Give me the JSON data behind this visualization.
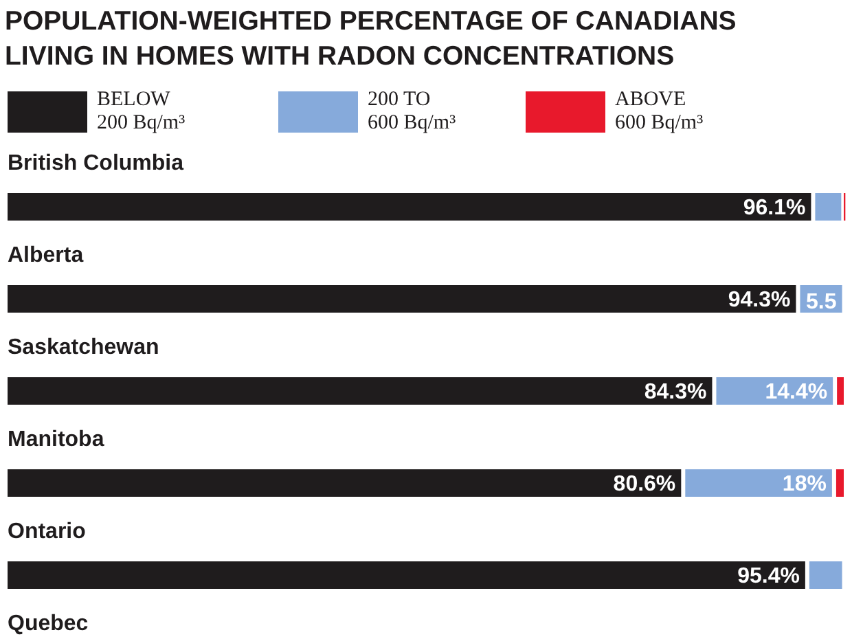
{
  "chart_data": {
    "type": "bar",
    "orientation": "horizontal",
    "stacked": true,
    "title": "POPULATION-WEIGHTED PERCENTAGE OF CANADIANS\nLIVING IN HOMES WITH RADON CONCENTRATIONS",
    "categories": [
      "British Columbia",
      "Alberta",
      "Saskatchewan",
      "Manitoba",
      "Ontario",
      "Quebec"
    ],
    "legend": "top",
    "series": [
      {
        "name": "BELOW\n200 Bq/m³",
        "color": "#1f1c1d",
        "values": [
          96.1,
          94.3,
          84.3,
          80.6,
          95.4,
          null
        ],
        "value_labels": [
          "96.1%",
          "94.3%",
          "84.3%",
          "80.6%",
          "95.4%",
          null
        ]
      },
      {
        "name": "200 TO\n600 Bq/m³",
        "color": "#86aadb",
        "values": [
          3.6,
          5.5,
          14.4,
          18,
          4.4,
          null
        ],
        "value_labels": [
          null,
          "5.5",
          "14.4%",
          "18%",
          null,
          null
        ]
      },
      {
        "name": "ABOVE\n600 Bq/m³",
        "color": "#e8192c",
        "values": [
          0.3,
          null,
          1.3,
          1.4,
          null,
          null
        ]
      }
    ]
  }
}
